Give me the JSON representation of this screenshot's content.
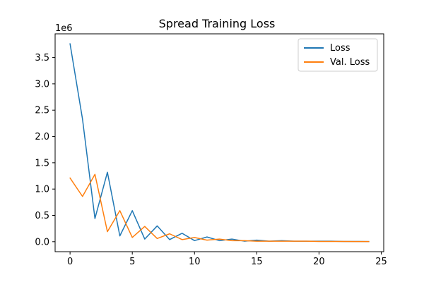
{
  "chart_data": {
    "type": "line",
    "title": "Spread Training Loss",
    "xlabel": "",
    "ylabel": "",
    "y_offset_label": "1e6",
    "xlim": [
      -1.2,
      25.2
    ],
    "ylim": [
      -0.19,
      3.95
    ],
    "x_ticks": [
      0,
      5,
      10,
      15,
      20,
      25
    ],
    "y_ticks": [
      0.0,
      0.5,
      1.0,
      1.5,
      2.0,
      2.5,
      3.0,
      3.5
    ],
    "y_tick_labels": [
      "0.0",
      "0.5",
      "1.0",
      "1.5",
      "2.0",
      "2.5",
      "3.0",
      "3.5"
    ],
    "x_tick_labels": [
      "0",
      "5",
      "10",
      "15",
      "20",
      "25"
    ],
    "grid": false,
    "legend_position": "top-right",
    "x": [
      0,
      1,
      2,
      3,
      4,
      5,
      6,
      7,
      8,
      9,
      10,
      11,
      12,
      13,
      14,
      15,
      16,
      17,
      18,
      19,
      20,
      21,
      22,
      23,
      24
    ],
    "series": [
      {
        "name": "Loss",
        "color": "#1f77b4",
        "values": [
          3.76,
          2.33,
          0.44,
          1.32,
          0.11,
          0.59,
          0.05,
          0.3,
          0.04,
          0.16,
          0.02,
          0.09,
          0.02,
          0.05,
          0.01,
          0.03,
          0.01,
          0.02,
          0.01,
          0.01,
          0.01,
          0.01,
          0.005,
          0.005,
          0.003
        ]
      },
      {
        "name": "Val. Loss",
        "color": "#ff7f0e",
        "values": [
          1.21,
          0.86,
          1.28,
          0.19,
          0.59,
          0.08,
          0.29,
          0.06,
          0.15,
          0.04,
          0.08,
          0.03,
          0.05,
          0.02,
          0.02,
          0.01,
          0.01,
          0.01,
          0.01,
          0.01,
          0.005,
          0.005,
          0.004,
          0.003,
          0.002
        ]
      }
    ]
  }
}
